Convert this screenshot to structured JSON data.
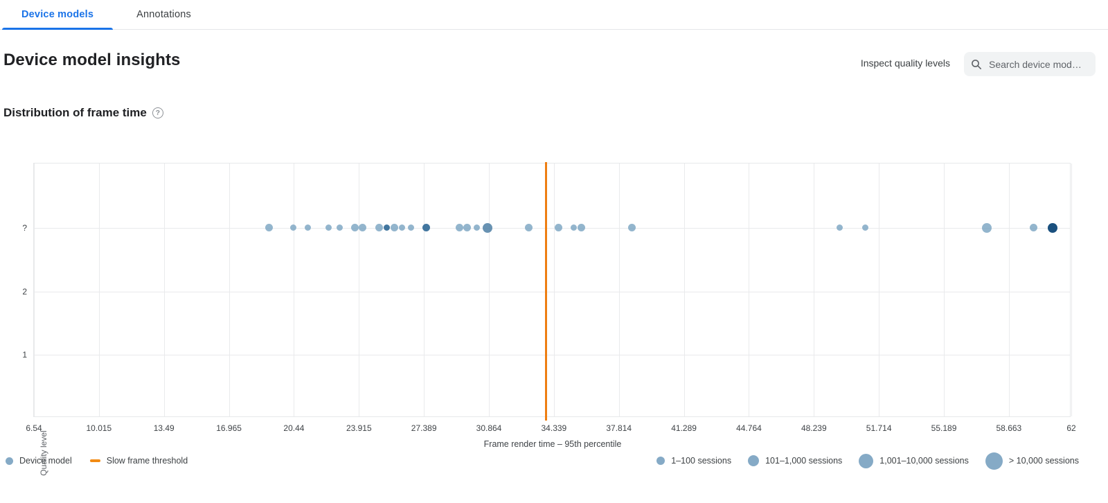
{
  "tabs": [
    {
      "label": "Device models",
      "active": true
    },
    {
      "label": "Annotations",
      "active": false
    }
  ],
  "header": {
    "title": "Device model insights",
    "inspect_button": "Inspect quality levels",
    "search_placeholder": "Search device mod…"
  },
  "section": {
    "title": "Distribution of frame time"
  },
  "chart_data": {
    "type": "scatter",
    "title": "Distribution of frame time",
    "xlabel": "Frame render time – 95th percentile",
    "ylabel": "Quality level",
    "xlim": [
      6.54,
      62
    ],
    "x_ticks": [
      6.54,
      10.015,
      13.49,
      16.965,
      20.44,
      23.915,
      27.389,
      30.864,
      34.339,
      37.814,
      41.289,
      44.764,
      48.239,
      51.714,
      55.189,
      58.663,
      62
    ],
    "y_categories": [
      "?",
      "2",
      "1"
    ],
    "grid": true,
    "threshold": {
      "label": "Slow frame threshold",
      "x": 33.9
    },
    "points": [
      {
        "x": 19.1,
        "quality": "?",
        "sessions": "101–1,000 sessions",
        "shade": "light"
      },
      {
        "x": 20.4,
        "quality": "?",
        "sessions": "1–100 sessions",
        "shade": "light"
      },
      {
        "x": 21.2,
        "quality": "?",
        "sessions": "1–100 sessions",
        "shade": "light"
      },
      {
        "x": 22.3,
        "quality": "?",
        "sessions": "1–100 sessions",
        "shade": "light"
      },
      {
        "x": 22.9,
        "quality": "?",
        "sessions": "1–100 sessions",
        "shade": "light"
      },
      {
        "x": 23.7,
        "quality": "?",
        "sessions": "101–1,000 sessions",
        "shade": "light"
      },
      {
        "x": 24.1,
        "quality": "?",
        "sessions": "101–1,000 sessions",
        "shade": "light"
      },
      {
        "x": 25.0,
        "quality": "?",
        "sessions": "101–1,000 sessions",
        "shade": "light"
      },
      {
        "x": 25.4,
        "quality": "?",
        "sessions": "1–100 sessions",
        "shade": "dark"
      },
      {
        "x": 25.8,
        "quality": "?",
        "sessions": "101–1,000 sessions",
        "shade": "light"
      },
      {
        "x": 26.2,
        "quality": "?",
        "sessions": "1–100 sessions",
        "shade": "light"
      },
      {
        "x": 26.7,
        "quality": "?",
        "sessions": "1–100 sessions",
        "shade": "light"
      },
      {
        "x": 27.5,
        "quality": "?",
        "sessions": "101–1,000 sessions",
        "shade": "dark"
      },
      {
        "x": 29.3,
        "quality": "?",
        "sessions": "101–1,000 sessions",
        "shade": "light"
      },
      {
        "x": 29.7,
        "quality": "?",
        "sessions": "101–1,000 sessions",
        "shade": "light"
      },
      {
        "x": 30.2,
        "quality": "?",
        "sessions": "1–100 sessions",
        "shade": "light"
      },
      {
        "x": 30.8,
        "quality": "?",
        "sessions": "1,001–10,000 sessions",
        "shade": "mid"
      },
      {
        "x": 33.0,
        "quality": "?",
        "sessions": "101–1,000 sessions",
        "shade": "light"
      },
      {
        "x": 34.6,
        "quality": "?",
        "sessions": "101–1,000 sessions",
        "shade": "light"
      },
      {
        "x": 35.4,
        "quality": "?",
        "sessions": "1–100 sessions",
        "shade": "light"
      },
      {
        "x": 35.8,
        "quality": "?",
        "sessions": "101–1,000 sessions",
        "shade": "light"
      },
      {
        "x": 38.5,
        "quality": "?",
        "sessions": "101–1,000 sessions",
        "shade": "light"
      },
      {
        "x": 49.6,
        "quality": "?",
        "sessions": "1–100 sessions",
        "shade": "light"
      },
      {
        "x": 51.0,
        "quality": "?",
        "sessions": "1–100 sessions",
        "shade": "light"
      },
      {
        "x": 57.5,
        "quality": "?",
        "sessions": "1,001–10,000 sessions",
        "shade": "light"
      },
      {
        "x": 60.0,
        "quality": "?",
        "sessions": "101–1,000 sessions",
        "shade": "light"
      },
      {
        "x": 61.0,
        "quality": "?",
        "sessions": "1,001–10,000 sessions",
        "shade": "navy"
      }
    ]
  },
  "legend": {
    "series": [
      {
        "label": "Device model",
        "type": "dot"
      },
      {
        "label": "Slow frame threshold",
        "type": "line"
      }
    ],
    "sizes": [
      {
        "label": "1–100 sessions"
      },
      {
        "label": "101–1,000 sessions"
      },
      {
        "label": "1,001–10,000 sessions"
      },
      {
        "label": "> 10,000 sessions"
      }
    ]
  },
  "colors": {
    "accent_blue": "#1a73e8",
    "threshold_orange": "#ee7e12",
    "legend_orange": "#f28b13",
    "dot_light": "#74a0bf",
    "dot_mid": "#4d7fa5",
    "dot_dark": "#2d6795",
    "dot_navy": "#1a507e",
    "legend_dot": "#85aac6",
    "search_bg": "#f1f3f4"
  }
}
